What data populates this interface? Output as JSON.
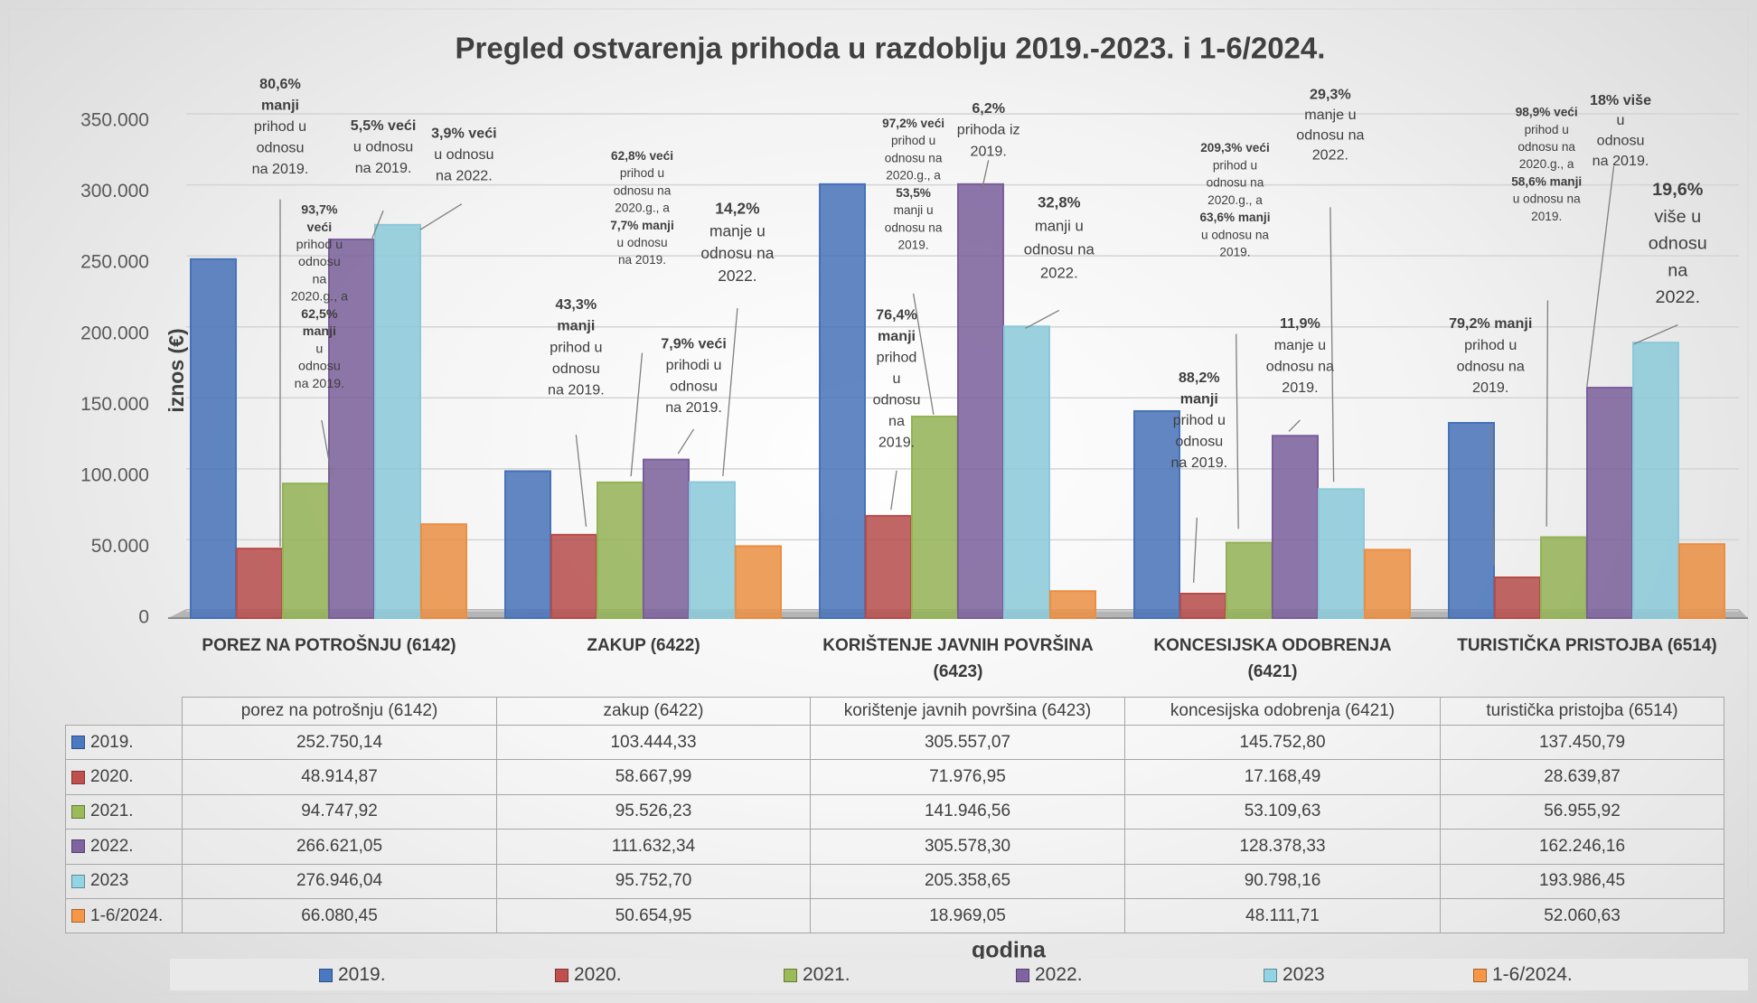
{
  "chart_data": {
    "type": "bar",
    "title": "Pregled ostvarenja prihoda u razdoblju 2019.-2023. i 1-6/2024.",
    "y_label": "iznos (€)",
    "x_label": "godina",
    "categories": [
      "POREZ NA POTROŠNJU (6142)",
      "ZAKUP (6422)",
      "KORIŠTENJE JAVNIH POVRŠINA (6423)",
      "KONCESIJSKA ODOBRENJA (6421)",
      "TURISTIČKA PRISTOJBA (6514)"
    ],
    "table_header": [
      "porez na potrošnju (6142)",
      "zakup (6422)",
      "korištenje javnih površina (6423)",
      "koncesijska odobrenja (6421)",
      "turistička pristojba (6514)"
    ],
    "ylim": [
      0,
      350000
    ],
    "yticks": [
      0,
      {
        "value": 50000,
        "label": "50.000"
      },
      {
        "value": 100000,
        "label": "100.000"
      },
      {
        "value": 150000,
        "label": "150.000"
      },
      {
        "value": 200000,
        "label": "200.000"
      },
      {
        "value": 250000,
        "label": "250.000"
      },
      {
        "value": 300000,
        "label": "300.000"
      },
      {
        "value": 350000,
        "label": "350.000"
      }
    ],
    "grid": true,
    "legend": "bottom",
    "series": [
      {
        "name": "2019.",
        "color": "#4a78c2",
        "values": [
          252750.14,
          103444.33,
          305557.07,
          145752.8,
          137450.79
        ],
        "value_labels": [
          "252.750,14",
          "103.444,33",
          "305.557,07",
          "145.752,80",
          "137.450,79"
        ]
      },
      {
        "name": "2020.",
        "color": "#c0504d",
        "values": [
          48914.87,
          58667.99,
          71976.95,
          17168.49,
          28639.87
        ],
        "value_labels": [
          "48.914,87",
          "58.667,99",
          "71.976,95",
          "17.168,49",
          "28.639,87"
        ]
      },
      {
        "name": "2021.",
        "color": "#9bbb59",
        "values": [
          94747.92,
          95526.23,
          141946.56,
          53109.63,
          56955.92
        ],
        "value_labels": [
          "94.747,92",
          "95.526,23",
          "141.946,56",
          "53.109,63",
          "56.955,92"
        ]
      },
      {
        "name": "2022.",
        "color": "#8064a2",
        "values": [
          266621.05,
          111632.34,
          305578.3,
          128378.33,
          162246.16
        ],
        "value_labels": [
          "266.621,05",
          "111.632,34",
          "305.578,30",
          "128.378,33",
          "162.246,16"
        ]
      },
      {
        "name": "2023",
        "color": "#92d3e4",
        "values": [
          276946.04,
          95752.7,
          205358.65,
          90798.16,
          193986.45
        ],
        "value_labels": [
          "276.946,04",
          "95.752,70",
          "205.358,65",
          "90.798,16",
          "193.986,45"
        ]
      },
      {
        "name": "1-6/2024.",
        "color": "#f79646",
        "values": [
          66080.45,
          50654.95,
          18969.05,
          48111.71,
          52060.63
        ],
        "value_labels": [
          "66.080,45",
          "50.654,95",
          "18.969,05",
          "48.111,71",
          "52.060,63"
        ]
      }
    ],
    "annotations": [
      [
        "80,6%",
        "manji",
        "prihod u",
        "odnosu",
        "na 2019."
      ],
      [
        "93,7%",
        "veći",
        "prihod u",
        "odnosu",
        "na",
        "2020.g., a",
        "62,5%",
        "manji",
        "u",
        "odnosu",
        "na 2019."
      ],
      [
        "5,5% veći",
        "u odnosu",
        "na 2019."
      ],
      [
        "3,9% veći",
        "u odnosu",
        "na 2022."
      ],
      [
        "62,8% veći",
        "prihod u",
        "odnosu na",
        "2020.g., a",
        "7,7% manji",
        "u odnosu",
        "na 2019."
      ],
      [
        "14,2%",
        "manje u",
        "odnosu na",
        "2022."
      ],
      [
        "43,3%",
        "manji",
        "prihod u",
        "odnosu",
        "na 2019."
      ],
      [
        "7,9% veći",
        "prihodi u",
        "odnosu",
        "na 2019."
      ],
      [
        "97,2% veći",
        "prihod u",
        "odnosu na",
        "2020.g., a",
        "53,5%",
        "manji u",
        "odnosu na",
        "2019."
      ],
      [
        "6,2%",
        "prihoda iz",
        "2019."
      ],
      [
        "32,8%",
        "manji u",
        "odnosu na",
        "2022."
      ],
      [
        "76,4%",
        "manji",
        "prihod",
        "u",
        "odnosu",
        "na",
        "2019."
      ],
      [
        "209,3% veći",
        "prihod u",
        "odnosu na",
        "2020.g., a",
        "63,6% manji",
        "u odnosu na",
        "2019."
      ],
      [
        "29,3%",
        "manje u",
        "odnosu na",
        "2022."
      ],
      [
        "88,2%",
        "manji",
        "prihod u",
        "odnosu",
        "na 2019."
      ],
      [
        "11,9%",
        "manje u",
        "odnosu na",
        "2019."
      ],
      [
        "98,9% veći",
        "prihod u",
        "odnosu na",
        "2020.g., a",
        "58,6% manji",
        "u odnosu na",
        "2019."
      ],
      [
        "18% više",
        "u",
        "odnosu",
        "na 2019."
      ],
      [
        "19,6%",
        "više u",
        "odnosu",
        "na",
        "2022."
      ],
      [
        "79,2% manji",
        "prihod u",
        "odnosu na",
        "2019."
      ]
    ]
  }
}
